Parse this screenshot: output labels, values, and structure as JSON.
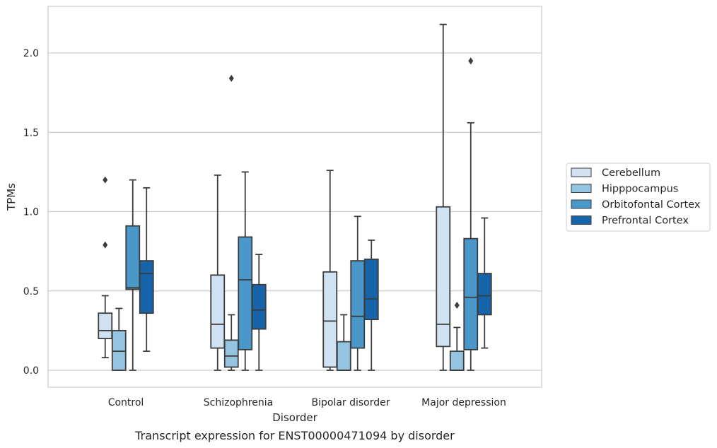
{
  "chart_data": {
    "type": "boxplot",
    "title": "",
    "caption": "Transcript expression for ENST00000471094 by disorder",
    "xlabel": "Disorder",
    "ylabel": "TPMs",
    "ylim": [
      -0.1,
      2.3
    ],
    "yticks": [
      0.0,
      0.5,
      1.0,
      1.5,
      2.0
    ],
    "ytick_labels": [
      "0.0",
      "0.5",
      "1.0",
      "1.5",
      "2.0"
    ],
    "categories": [
      "Control",
      "Schizophrenia",
      "Bipolar disorder",
      "Major depression"
    ],
    "grid": "horizontal",
    "legend_position": "right",
    "series": [
      {
        "name": "Cerebellum",
        "color": "#d0e1f2",
        "boxes": [
          {
            "whislo": 0.08,
            "q1": 0.2,
            "med": 0.25,
            "q3": 0.36,
            "whishi": 0.47,
            "fliers": [
              0.79,
              1.2
            ]
          },
          {
            "whislo": 0.0,
            "q1": 0.14,
            "med": 0.29,
            "q3": 0.6,
            "whishi": 1.23,
            "fliers": []
          },
          {
            "whislo": 0.0,
            "q1": 0.02,
            "med": 0.31,
            "q3": 0.62,
            "whishi": 1.26,
            "fliers": []
          },
          {
            "whislo": 0.0,
            "q1": 0.15,
            "med": 0.29,
            "q3": 1.03,
            "whishi": 2.18,
            "fliers": []
          }
        ]
      },
      {
        "name": "Hipppocampus",
        "color": "#94c4df",
        "boxes": [
          {
            "whislo": 0.0,
            "q1": 0.0,
            "med": 0.12,
            "q3": 0.25,
            "whishi": 0.39,
            "fliers": []
          },
          {
            "whislo": 0.0,
            "q1": 0.02,
            "med": 0.09,
            "q3": 0.19,
            "whishi": 0.35,
            "fliers": [
              1.84
            ]
          },
          {
            "whislo": 0.0,
            "q1": 0.0,
            "med": 0.0,
            "q3": 0.18,
            "whishi": 0.35,
            "fliers": []
          },
          {
            "whislo": 0.0,
            "q1": 0.0,
            "med": 0.0,
            "q3": 0.12,
            "whishi": 0.27,
            "fliers": [
              0.41
            ]
          }
        ]
      },
      {
        "name": "Orbitofontal Cortex",
        "color": "#4a98c9",
        "boxes": [
          {
            "whislo": 0.0,
            "q1": 0.51,
            "med": 0.52,
            "q3": 0.91,
            "whishi": 1.2,
            "fliers": []
          },
          {
            "whislo": 0.0,
            "q1": 0.13,
            "med": 0.57,
            "q3": 0.84,
            "whishi": 1.25,
            "fliers": []
          },
          {
            "whislo": 0.0,
            "q1": 0.14,
            "med": 0.34,
            "q3": 0.69,
            "whishi": 0.97,
            "fliers": []
          },
          {
            "whislo": 0.0,
            "q1": 0.13,
            "med": 0.46,
            "q3": 0.83,
            "whishi": 1.56,
            "fliers": [
              1.95
            ]
          }
        ]
      },
      {
        "name": "Prefrontal Cortex",
        "color": "#1764ab",
        "boxes": [
          {
            "whislo": 0.12,
            "q1": 0.36,
            "med": 0.61,
            "q3": 0.69,
            "whishi": 1.15,
            "fliers": []
          },
          {
            "whislo": 0.0,
            "q1": 0.26,
            "med": 0.38,
            "q3": 0.54,
            "whishi": 0.73,
            "fliers": []
          },
          {
            "whislo": 0.0,
            "q1": 0.32,
            "med": 0.45,
            "q3": 0.7,
            "whishi": 0.82,
            "fliers": []
          },
          {
            "whislo": 0.14,
            "q1": 0.35,
            "med": 0.47,
            "q3": 0.61,
            "whishi": 0.96,
            "fliers": []
          }
        ]
      }
    ]
  }
}
